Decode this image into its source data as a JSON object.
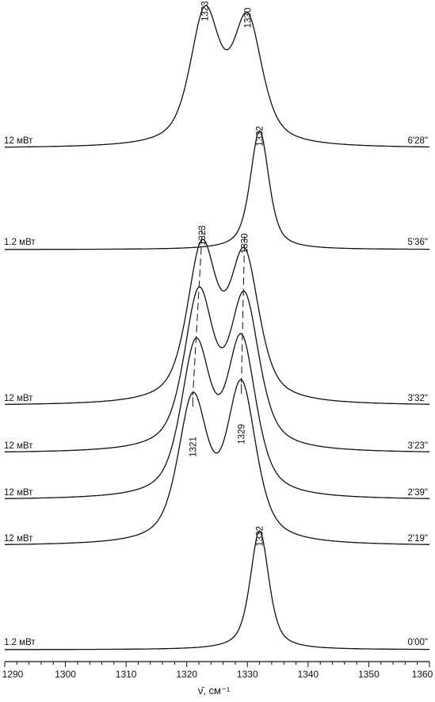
{
  "chart_data": {
    "type": "line",
    "title": "",
    "xlabel": "ν̄, см⁻¹",
    "ylabel": "",
    "xlim": [
      1290,
      1360
    ],
    "x_ticks": [
      "1290",
      "1300",
      "1310",
      "1320",
      "1330",
      "1340",
      "1350",
      "1360"
    ],
    "grid": false,
    "series": [
      {
        "power": "1.2 мВт",
        "time": "0'00\"",
        "peaks": [
          {
            "x": 1332,
            "amp": 1.0,
            "w": 1.9
          }
        ],
        "peak_labels": [
          "1332"
        ]
      },
      {
        "power": "12 мВт",
        "time": "2'19\"",
        "peaks": [
          {
            "x": 1321,
            "amp": 0.62,
            "w": 3.0
          },
          {
            "x": 1329,
            "amp": 0.68,
            "w": 3.0
          }
        ],
        "peak_labels": []
      },
      {
        "power": "12 мВт",
        "time": "2'39\"",
        "peaks": [
          {
            "x": 1321.5,
            "amp": 0.64,
            "w": 3.0
          },
          {
            "x": 1329,
            "amp": 0.66,
            "w": 3.0
          }
        ],
        "peak_labels": []
      },
      {
        "power": "12 мВт",
        "time": "3'23\"",
        "peaks": [
          {
            "x": 1322,
            "amp": 0.66,
            "w": 3.0
          },
          {
            "x": 1329.5,
            "amp": 0.64,
            "w": 3.0
          }
        ],
        "peak_labels": []
      },
      {
        "power": "12 мВт",
        "time": "3'32\"",
        "peaks": [
          {
            "x": 1322.5,
            "amp": 0.68,
            "w": 3.0
          },
          {
            "x": 1329.5,
            "amp": 0.64,
            "w": 3.0
          }
        ],
        "peak_labels": []
      },
      {
        "power": "1.2 мВт",
        "time": "5'36\"",
        "peaks": [
          {
            "x": 1332,
            "amp": 1.0,
            "w": 1.9
          }
        ],
        "peak_labels": [
          "1332"
        ]
      },
      {
        "power": "12 мВт",
        "time": "6'28\"",
        "peaks": [
          {
            "x": 1323,
            "amp": 0.7,
            "w": 3.0
          },
          {
            "x": 1330,
            "amp": 0.66,
            "w": 3.0
          }
        ],
        "peak_labels": [
          "1323",
          "1330"
        ]
      }
    ],
    "annotations": [
      {
        "text": "1323"
      },
      {
        "text": "1330"
      },
      {
        "text": "1321"
      },
      {
        "text": "1329"
      }
    ]
  }
}
